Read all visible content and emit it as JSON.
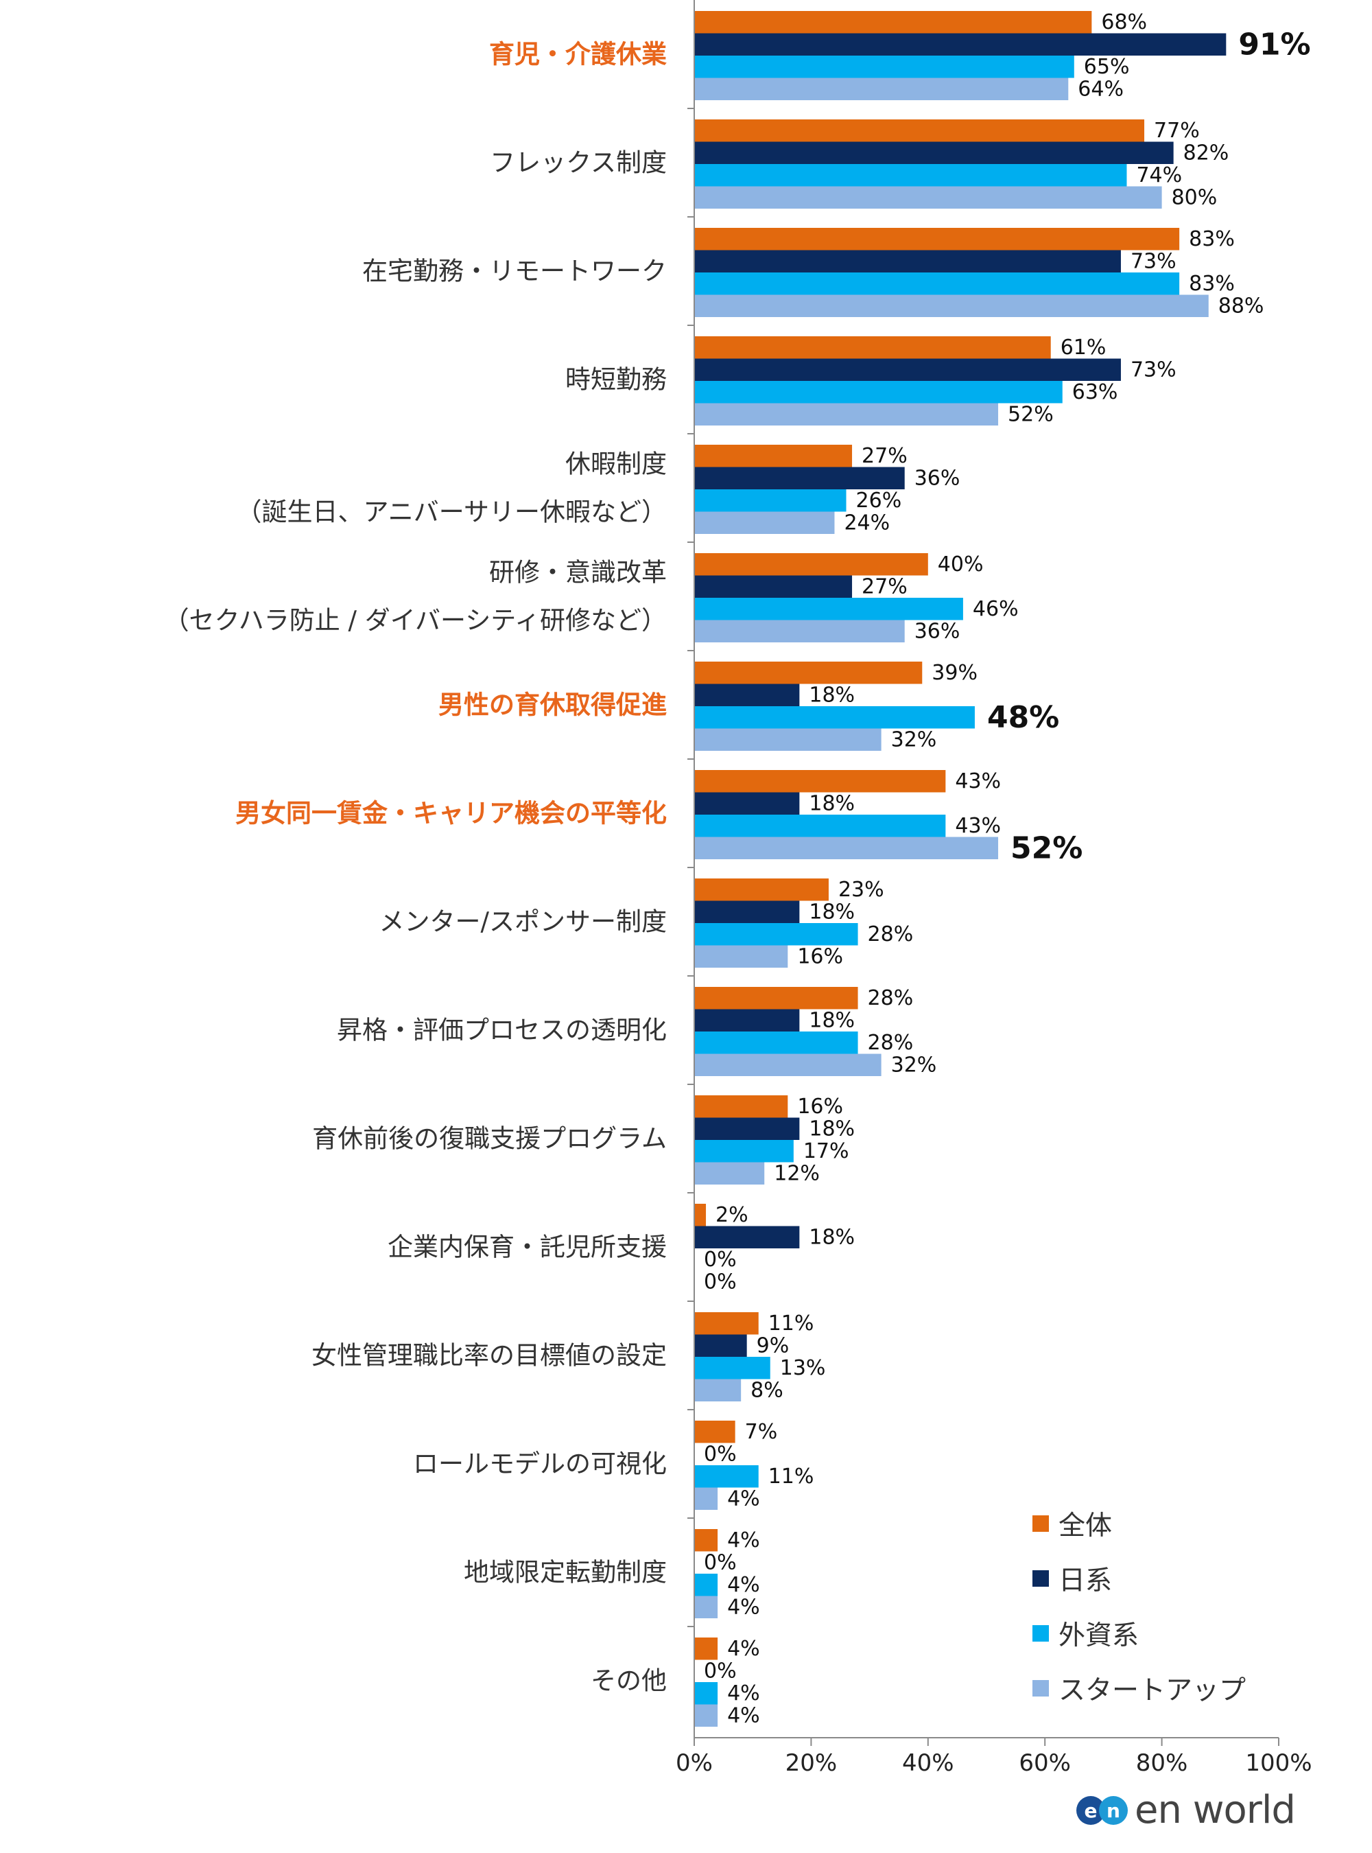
{
  "chart_data": {
    "type": "bar",
    "orientation": "horizontal",
    "categories": [
      [
        "育児・介護休業"
      ],
      [
        "フレックス制度"
      ],
      [
        "在宅勤務・リモートワーク"
      ],
      [
        "時短勤務"
      ],
      [
        "休暇制度",
        "（誕生日、アニバーサリー休暇など）"
      ],
      [
        "研修・意識改革",
        "（セクハラ防止 / ダイバーシティ研修など）"
      ],
      [
        "男性の育休取得促進"
      ],
      [
        "男女同一賃金・キャリア機会の平等化"
      ],
      [
        "メンター/スポンサー制度"
      ],
      [
        "昇格・評価プロセスの透明化"
      ],
      [
        "育休前後の復職支援プログラム"
      ],
      [
        "企業内保育・託児所支援"
      ],
      [
        "女性管理職比率の目標値の設定"
      ],
      [
        "ロールモデルの可視化"
      ],
      [
        "地域限定転勤制度"
      ],
      [
        "その他"
      ]
    ],
    "highlight_categories": [
      0,
      6,
      7
    ],
    "series": [
      {
        "name": "全体",
        "color": "#e2690e",
        "values": [
          68,
          77,
          83,
          61,
          27,
          40,
          39,
          43,
          23,
          28,
          16,
          2,
          11,
          7,
          4,
          4
        ]
      },
      {
        "name": "日系",
        "color": "#0b2a5e",
        "values": [
          91,
          82,
          73,
          73,
          36,
          27,
          18,
          18,
          18,
          18,
          18,
          18,
          9,
          0,
          0,
          0
        ]
      },
      {
        "name": "外資系",
        "color": "#00aeef",
        "values": [
          65,
          74,
          83,
          63,
          26,
          46,
          48,
          43,
          28,
          28,
          17,
          0,
          13,
          11,
          4,
          4
        ]
      },
      {
        "name": "スタートアップ",
        "color": "#8eb4e3",
        "values": [
          64,
          80,
          88,
          52,
          24,
          36,
          32,
          52,
          16,
          32,
          12,
          0,
          8,
          4,
          4,
          4
        ]
      }
    ],
    "emphasized_values": [
      {
        "category": 0,
        "series": 1,
        "color": "#0b2a5e"
      },
      {
        "category": 6,
        "series": 2,
        "color": "#1aa7e0"
      },
      {
        "category": 7,
        "series": 3,
        "color": "#5b8fd1"
      }
    ],
    "value_suffix": "%",
    "xlim": [
      0,
      100
    ],
    "xticks": [
      "0%",
      "20%",
      "40%",
      "60%",
      "80%",
      "100%"
    ],
    "highlight_color": "#e8661c",
    "legend_position": "bottom-right"
  },
  "logo": {
    "text": "en world",
    "mark": "en"
  }
}
